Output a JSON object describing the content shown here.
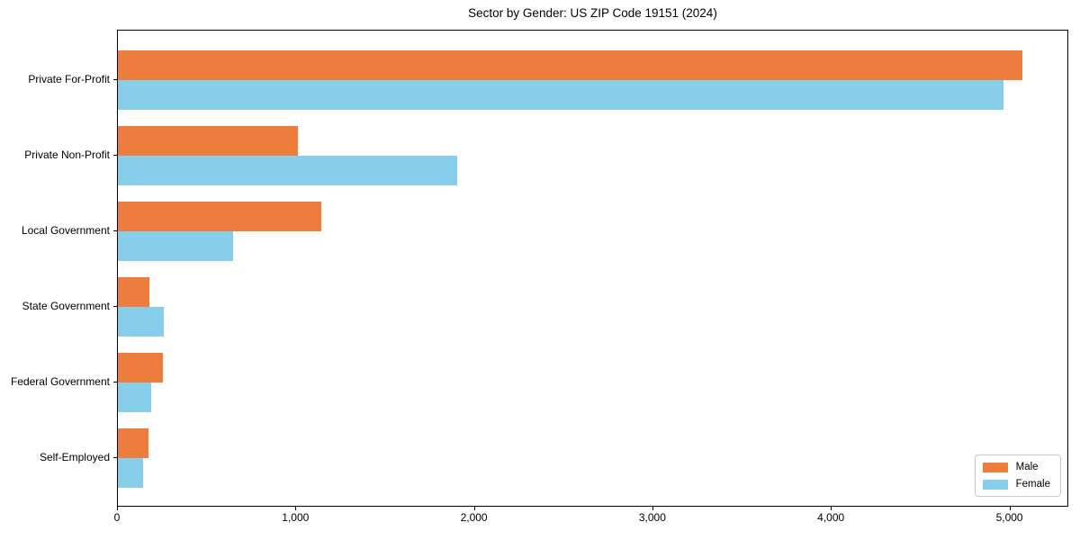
{
  "chart_data": {
    "type": "bar",
    "orientation": "horizontal",
    "title": "Sector by Gender: US ZIP Code 19151 (2024)",
    "categories": [
      "Private For-Profit",
      "Private Non-Profit",
      "Local Government",
      "State Government",
      "Federal Government",
      "Self-Employed"
    ],
    "series": [
      {
        "name": "Male",
        "color": "#ec7d3c",
        "values": [
          5070,
          1010,
          1140,
          175,
          250,
          170
        ]
      },
      {
        "name": "Female",
        "color": "#87ceeb",
        "values": [
          4960,
          1900,
          645,
          255,
          185,
          140
        ]
      }
    ],
    "xlim": [
      0,
      5330
    ],
    "xticks": [
      0,
      1000,
      2000,
      3000,
      4000,
      5000
    ],
    "xtick_labels": [
      "0",
      "1,000",
      "2,000",
      "3,000",
      "4,000",
      "5,000"
    ],
    "xlabel": "",
    "ylabel": "",
    "grid": false,
    "legend_position": "lower right",
    "axis_color": "#000000",
    "background_color": "#ffffff"
  }
}
